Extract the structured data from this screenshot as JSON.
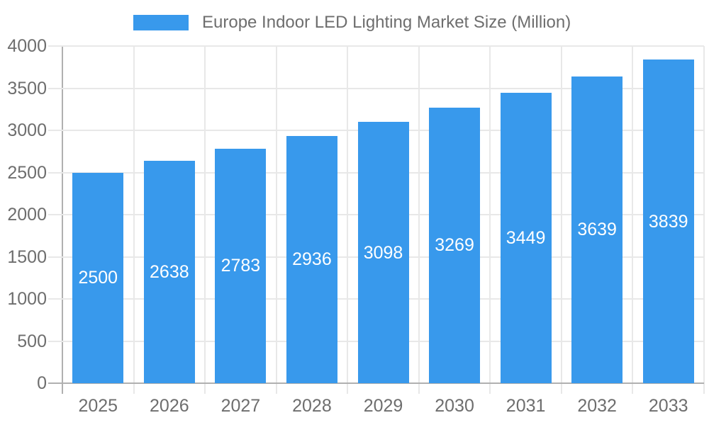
{
  "legend": {
    "label": "Europe Indoor LED Lighting Market Size (Million)"
  },
  "chart_data": {
    "type": "bar",
    "title": "Europe Indoor LED Lighting Market Size (Million)",
    "series_name": "Europe Indoor LED Lighting Market Size (Million)",
    "categories": [
      "2025",
      "2026",
      "2027",
      "2028",
      "2029",
      "2030",
      "2031",
      "2032",
      "2033"
    ],
    "values": [
      2500,
      2638,
      2783,
      2936,
      3098,
      3269,
      3449,
      3639,
      3839
    ],
    "xlabel": "",
    "ylabel": "",
    "ylim": [
      0,
      4000
    ],
    "y_ticks": [
      0,
      500,
      1000,
      1500,
      2000,
      2500,
      3000,
      3500,
      4000
    ],
    "grid": true,
    "legend_position": "top",
    "bar_value_labels_visible": true,
    "colors": {
      "bar": "#3899ec",
      "bar_label_text": "#ffffff",
      "tick_text": "#6e6e6e",
      "grid_line": "#e8e8e8",
      "axis_line": "#b0b0b0",
      "background": "#ffffff"
    }
  }
}
